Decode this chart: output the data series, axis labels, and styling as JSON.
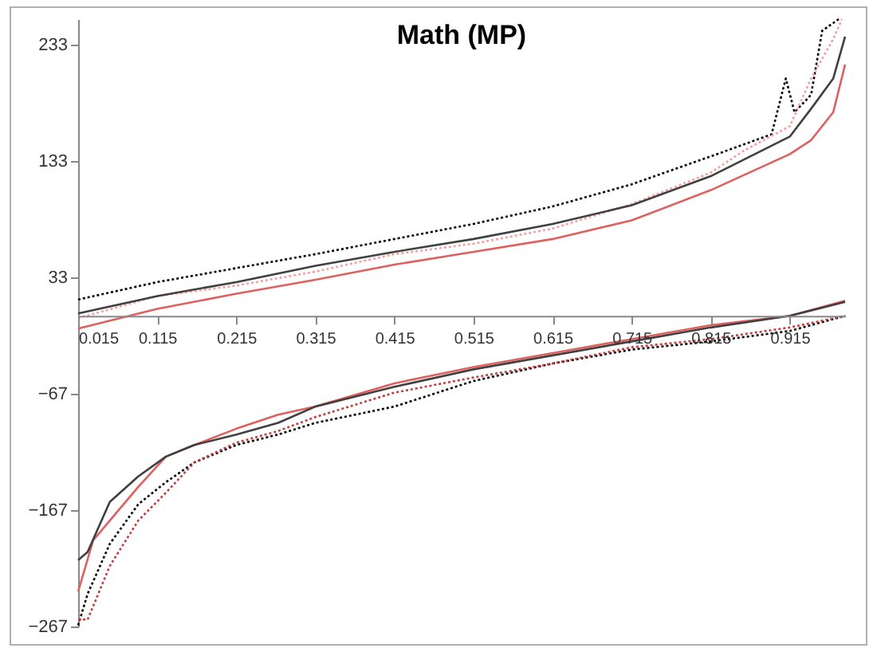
{
  "chart_data": {
    "type": "line",
    "title": "Math (MP)",
    "xlim": [
      0.015,
      0.985
    ],
    "xticks": [
      0.015,
      0.115,
      0.215,
      0.315,
      0.415,
      0.515,
      0.615,
      0.715,
      0.815,
      0.915
    ],
    "ylim": [
      -267,
      255
    ],
    "yticks": [
      -267,
      -167,
      -67,
      33,
      133,
      233
    ],
    "grid": false,
    "legend": false,
    "series": [
      {
        "color": "#000000",
        "line_style": "dotted",
        "x": [
          0.015,
          0.115,
          0.215,
          0.315,
          0.415,
          0.515,
          0.615,
          0.715,
          0.815,
          0.892,
          0.91,
          0.921,
          0.942,
          0.956,
          0.977
        ],
        "values": [
          14,
          29,
          41,
          53,
          66,
          79,
          94,
          113,
          137,
          156,
          204,
          175,
          190,
          245,
          255
        ]
      },
      {
        "color": "#f2a0a0",
        "line_style": "dotted",
        "x": [
          0.015,
          0.115,
          0.215,
          0.315,
          0.415,
          0.515,
          0.615,
          0.715,
          0.815,
          0.857,
          0.915,
          0.942,
          0.97,
          0.981
        ],
        "values": [
          -2,
          17,
          26,
          38,
          53,
          62,
          75,
          96,
          123,
          142,
          163,
          204,
          238,
          255
        ]
      },
      {
        "color": "#404040",
        "line_style": "solid",
        "x": [
          0.015,
          0.115,
          0.215,
          0.315,
          0.415,
          0.515,
          0.615,
          0.715,
          0.815,
          0.915,
          0.942,
          0.97,
          0.985
        ],
        "values": [
          2,
          17,
          29,
          43,
          55,
          66,
          79,
          95,
          120,
          154,
          178,
          204,
          240
        ]
      },
      {
        "color": "#e06060",
        "line_style": "solid",
        "x": [
          0.015,
          0.115,
          0.215,
          0.315,
          0.415,
          0.515,
          0.615,
          0.715,
          0.815,
          0.915,
          0.942,
          0.97,
          0.985
        ],
        "values": [
          -11,
          6,
          19,
          31,
          44,
          55,
          66,
          82,
          108,
          139,
          151,
          175,
          216
        ]
      },
      {
        "color": "#e06060",
        "line_style": "solid",
        "x": [
          0.015,
          0.034,
          0.055,
          0.091,
          0.126,
          0.162,
          0.215,
          0.268,
          0.315,
          0.415,
          0.515,
          0.615,
          0.715,
          0.815,
          0.915,
          0.985
        ],
        "values": [
          -237,
          -193,
          -176,
          -147,
          -121,
          -111,
          -97,
          -85,
          -78,
          -58,
          -44,
          -32,
          -20,
          -8,
          0,
          13
        ]
      },
      {
        "color": "#404040",
        "line_style": "solid",
        "x": [
          0.015,
          0.027,
          0.055,
          0.091,
          0.126,
          0.162,
          0.215,
          0.268,
          0.315,
          0.415,
          0.515,
          0.615,
          0.715,
          0.815,
          0.915,
          0.985
        ],
        "values": [
          -210,
          -203,
          -160,
          -138,
          -121,
          -111,
          -102,
          -92,
          -78,
          -61,
          -46,
          -34,
          -22,
          -10,
          0,
          12
        ]
      },
      {
        "color": "#000000",
        "line_style": "dotted",
        "x": [
          0.015,
          0.027,
          0.055,
          0.091,
          0.126,
          0.162,
          0.215,
          0.268,
          0.315,
          0.415,
          0.515,
          0.615,
          0.715,
          0.815,
          0.915,
          0.985
        ],
        "values": [
          -266,
          -239,
          -196,
          -162,
          -143,
          -126,
          -111,
          -102,
          -92,
          -78,
          -56,
          -41,
          -29,
          -22,
          -13,
          0
        ]
      },
      {
        "color": "#c04040",
        "line_style": "dotted",
        "x": [
          0.015,
          0.027,
          0.055,
          0.091,
          0.126,
          0.162,
          0.215,
          0.268,
          0.315,
          0.415,
          0.515,
          0.615,
          0.715,
          0.815,
          0.915,
          0.985
        ],
        "values": [
          -261,
          -261,
          -215,
          -176,
          -152,
          -126,
          -109,
          -99,
          -87,
          -66,
          -53,
          -41,
          -27,
          -20,
          -10,
          0
        ]
      }
    ]
  }
}
